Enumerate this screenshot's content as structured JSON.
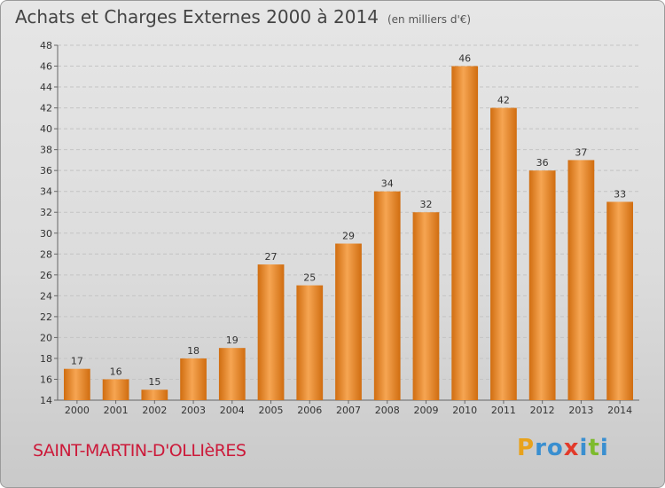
{
  "header": {
    "title": "Achats et Charges Externes 2000 à 2014",
    "unit": "(en milliers d'€)"
  },
  "footer": {
    "commune": "SAINT-MARTIN-D'OLLIèRES",
    "brand": "Proxiti",
    "brand_letters": [
      "P",
      "r",
      "o",
      "x",
      "i",
      "t",
      "i"
    ],
    "brand_colors": [
      "#e8a21c",
      "#3a8fd0",
      "#3a8fd0",
      "#e23a2a",
      "#3a8fd0",
      "#7dbb2d",
      "#3a8fd0"
    ]
  },
  "colors": {
    "bar_light": "#f6a552",
    "bar_dark": "#d06d10",
    "accent": "#cc1a3a"
  },
  "chart_data": {
    "type": "bar",
    "title": "Achats et Charges Externes 2000 à 2014",
    "subtitle": "(en milliers d'€)",
    "categories": [
      "2000",
      "2001",
      "2002",
      "2003",
      "2004",
      "2005",
      "2006",
      "2007",
      "2008",
      "2009",
      "2010",
      "2011",
      "2012",
      "2013",
      "2014"
    ],
    "values": [
      17,
      16,
      15,
      18,
      19,
      27,
      25,
      29,
      34,
      32,
      46,
      42,
      36,
      37,
      33
    ],
    "ylim": [
      14,
      48
    ],
    "yticks": [
      14,
      16,
      18,
      20,
      22,
      24,
      26,
      28,
      30,
      32,
      34,
      36,
      38,
      40,
      42,
      44,
      46,
      48
    ],
    "grid": true,
    "legend": "none"
  }
}
